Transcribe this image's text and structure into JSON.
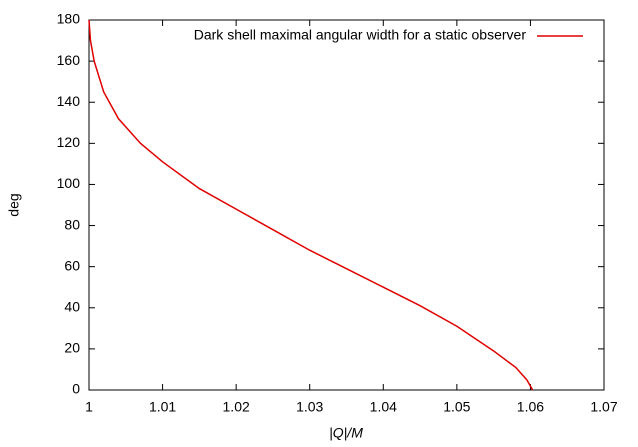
{
  "chart_data": {
    "type": "line",
    "xlabel": "|Q|/M",
    "ylabel": "deg",
    "x": [
      1.0,
      1.0002,
      1.0007,
      1.002,
      1.004,
      1.007,
      1.01,
      1.015,
      1.02,
      1.025,
      1.03,
      1.035,
      1.04,
      1.045,
      1.05,
      1.055,
      1.058,
      1.0595,
      1.0603
    ],
    "series": [
      {
        "name": "Dark shell maximal angular width for a static observer",
        "color": "#e00000",
        "values": [
          180,
          170,
          160,
          145,
          132,
          120,
          111,
          98,
          88,
          78,
          68,
          59,
          50,
          41,
          31,
          19,
          11,
          5,
          0
        ]
      }
    ],
    "xlim": [
      1,
      1.07
    ],
    "xticks": [
      1,
      1.01,
      1.02,
      1.03,
      1.04,
      1.05,
      1.06,
      1.07
    ],
    "ylim": [
      0,
      180
    ],
    "yticks": [
      0,
      20,
      40,
      60,
      80,
      100,
      120,
      140,
      160,
      180
    ],
    "legend": "top-right"
  }
}
